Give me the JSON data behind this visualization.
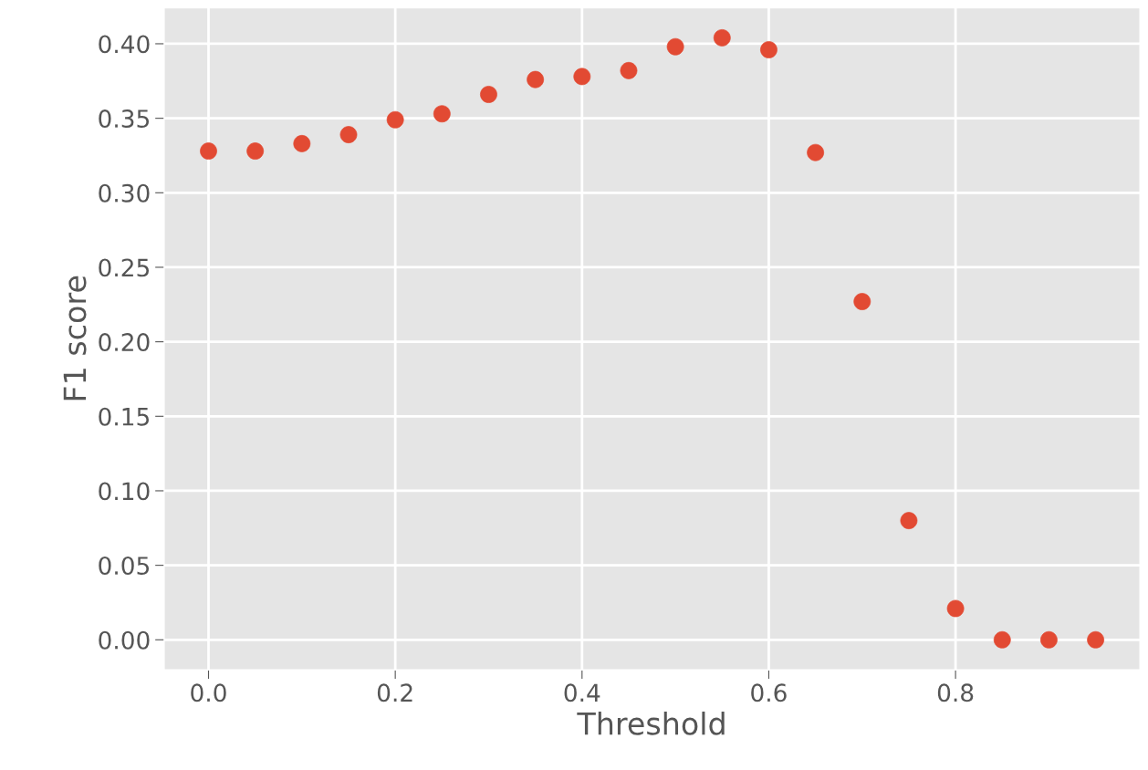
{
  "chart_data": {
    "type": "scatter",
    "xlabel": "Threshold",
    "ylabel": "F1 score",
    "x": [
      0.0,
      0.05,
      0.1,
      0.15,
      0.2,
      0.25,
      0.3,
      0.35,
      0.4,
      0.45,
      0.5,
      0.55,
      0.6,
      0.65,
      0.7,
      0.75,
      0.8,
      0.85,
      0.9,
      0.95
    ],
    "series": [
      {
        "color": "#e24a33",
        "values": [
          0.328,
          0.328,
          0.333,
          0.339,
          0.349,
          0.353,
          0.366,
          0.376,
          0.378,
          0.382,
          0.398,
          0.404,
          0.396,
          0.327,
          0.227,
          0.08,
          0.021,
          0.0,
          0.0,
          0.0
        ]
      }
    ],
    "xlim": [
      -0.0475,
      0.9975
    ],
    "ylim": [
      -0.0202,
      0.4242
    ],
    "xticks": [
      {
        "value": 0.0,
        "label": "0.0"
      },
      {
        "value": 0.2,
        "label": "0.2"
      },
      {
        "value": 0.4,
        "label": "0.4"
      },
      {
        "value": 0.6,
        "label": "0.6"
      },
      {
        "value": 0.8,
        "label": "0.8"
      }
    ],
    "yticks": [
      {
        "value": 0.0,
        "label": "0.00"
      },
      {
        "value": 0.05,
        "label": "0.05"
      },
      {
        "value": 0.1,
        "label": "0.10"
      },
      {
        "value": 0.15,
        "label": "0.15"
      },
      {
        "value": 0.2,
        "label": "0.20"
      },
      {
        "value": 0.25,
        "label": "0.25"
      },
      {
        "value": 0.3,
        "label": "0.30"
      },
      {
        "value": 0.35,
        "label": "0.35"
      },
      {
        "value": 0.4,
        "label": "0.40"
      }
    ],
    "grid": true,
    "marker": "circle"
  }
}
